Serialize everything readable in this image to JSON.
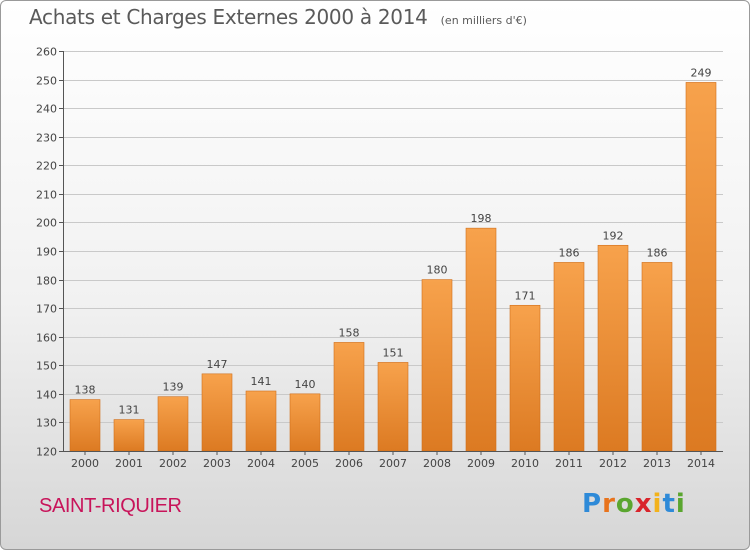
{
  "title": "Achats et Charges Externes 2000 à 2014",
  "unit_note": "(en milliers d'€)",
  "location": "SAINT-RIQUIER",
  "logo": "Proxiti",
  "chart_data": {
    "type": "bar",
    "categories": [
      "2000",
      "2001",
      "2002",
      "2003",
      "2004",
      "2005",
      "2006",
      "2007",
      "2008",
      "2009",
      "2010",
      "2011",
      "2012",
      "2013",
      "2014"
    ],
    "values": [
      138,
      131,
      139,
      147,
      141,
      140,
      158,
      151,
      180,
      198,
      171,
      186,
      192,
      186,
      249
    ],
    "data_labels": [
      "138",
      "131",
      "139",
      "147",
      "141",
      "140",
      "158",
      "151",
      "180",
      "198",
      "171",
      "186",
      "192",
      "186",
      "249"
    ],
    "ylim": [
      120,
      260
    ],
    "yticks": [
      120,
      130,
      140,
      150,
      160,
      170,
      180,
      190,
      200,
      210,
      220,
      230,
      240,
      250,
      260
    ],
    "grid": "horizontal",
    "bar_color": "#f0933a",
    "bar_color_dark": "#d97520"
  }
}
